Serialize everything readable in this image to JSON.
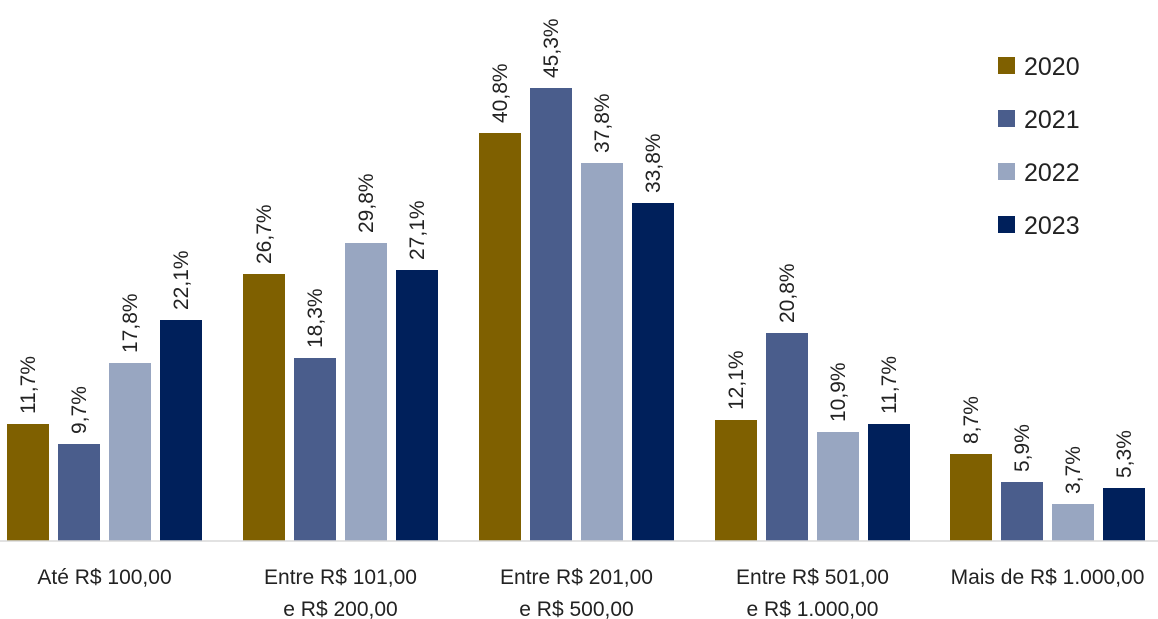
{
  "chart_data": {
    "type": "bar",
    "categories": [
      [
        "Até R$ 100,00"
      ],
      [
        "Entre R$ 101,00",
        "e R$ 200,00"
      ],
      [
        "Entre R$ 201,00",
        "e R$ 500,00"
      ],
      [
        "Entre R$ 501,00",
        "e R$ 1.000,00"
      ],
      [
        "Mais de R$ 1.000,00"
      ]
    ],
    "series": [
      {
        "name": "2020",
        "color": "#7f6000",
        "values": [
          11.7,
          26.7,
          40.8,
          12.1,
          8.7
        ],
        "labels": [
          "11,7%",
          "26,7%",
          "40,8%",
          "12,1%",
          "8,7%"
        ]
      },
      {
        "name": "2021",
        "color": "#4a5d8c",
        "values": [
          9.7,
          18.3,
          45.3,
          20.8,
          5.9
        ],
        "labels": [
          "9,7%",
          "18,3%",
          "45,3%",
          "20,8%",
          "5,9%"
        ]
      },
      {
        "name": "2022",
        "color": "#98a6c1",
        "values": [
          17.8,
          29.8,
          37.8,
          10.9,
          3.7
        ],
        "labels": [
          "17,8%",
          "29,8%",
          "37,8%",
          "10,9%",
          "3,7%"
        ]
      },
      {
        "name": "2023",
        "color": "#00205b",
        "values": [
          22.1,
          27.1,
          33.8,
          11.7,
          5.3
        ],
        "labels": [
          "22,1%",
          "27,1%",
          "33,8%",
          "11,7%",
          "5,3%"
        ]
      }
    ],
    "ylim": [
      0,
      50
    ],
    "grid": false,
    "legend_position": "top-right"
  }
}
